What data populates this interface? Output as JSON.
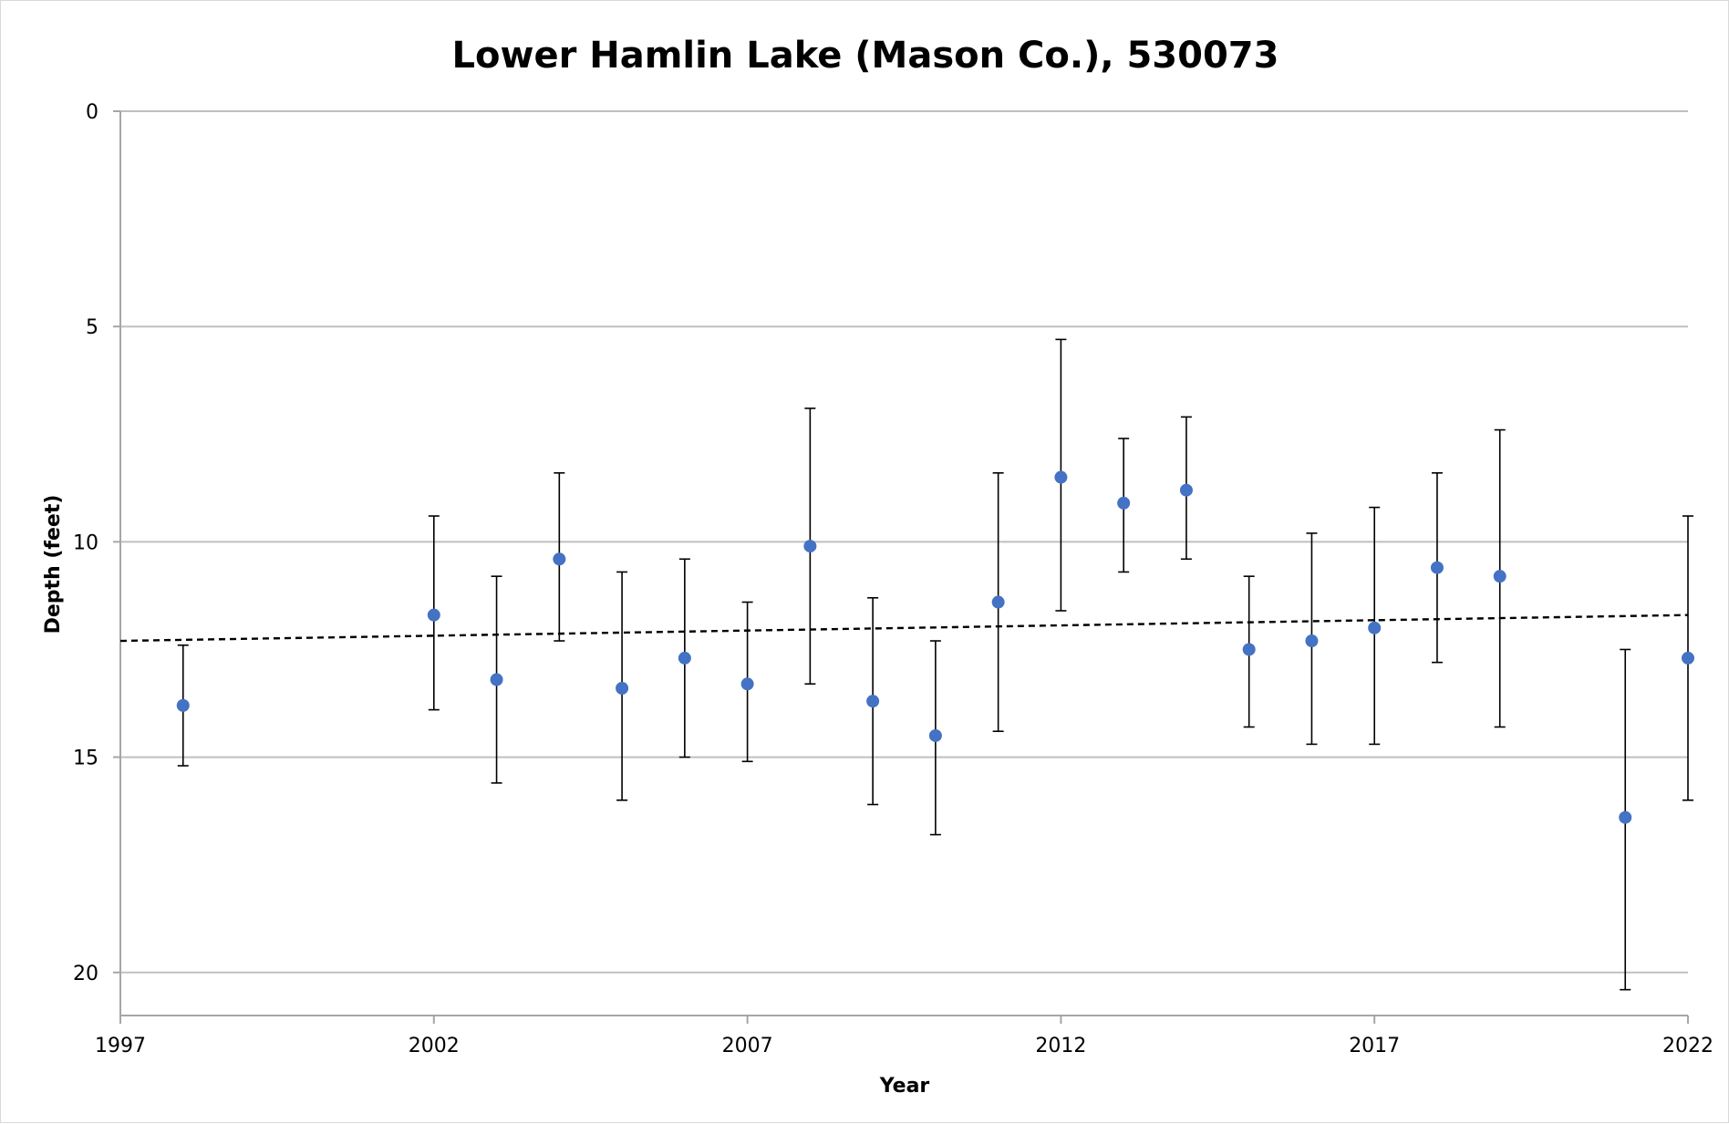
{
  "chart_data": {
    "type": "scatter",
    "title": "Lower Hamlin Lake (Mason Co.), 530073",
    "xlabel": "Year",
    "ylabel": "Depth (feet)",
    "xlim": [
      1997,
      2022
    ],
    "ylim": [
      0,
      21
    ],
    "y_inverted": true,
    "x_ticks": [
      "1997",
      "2002",
      "2007",
      "2012",
      "2017",
      "2022"
    ],
    "y_ticks": [
      "0",
      "5",
      "10",
      "15",
      "20"
    ],
    "grid": "horizontal",
    "legend": "none",
    "marker_color": "#4472c4",
    "points": [
      {
        "x": 1998,
        "y": 13.8,
        "low": 12.4,
        "high": 15.2
      },
      {
        "x": 2002,
        "y": 11.7,
        "low": 9.4,
        "high": 13.9
      },
      {
        "x": 2003,
        "y": 13.2,
        "low": 10.8,
        "high": 15.6
      },
      {
        "x": 2004,
        "y": 10.4,
        "low": 8.4,
        "high": 12.3
      },
      {
        "x": 2005,
        "y": 13.4,
        "low": 10.7,
        "high": 16.0
      },
      {
        "x": 2006,
        "y": 12.7,
        "low": 10.4,
        "high": 15.0
      },
      {
        "x": 2007,
        "y": 13.3,
        "low": 11.4,
        "high": 15.1
      },
      {
        "x": 2008,
        "y": 10.1,
        "low": 6.9,
        "high": 13.3
      },
      {
        "x": 2009,
        "y": 13.7,
        "low": 11.3,
        "high": 16.1
      },
      {
        "x": 2010,
        "y": 14.5,
        "low": 12.3,
        "high": 16.8
      },
      {
        "x": 2011,
        "y": 11.4,
        "low": 8.4,
        "high": 14.4
      },
      {
        "x": 2012,
        "y": 8.5,
        "low": 5.3,
        "high": 11.6
      },
      {
        "x": 2013,
        "y": 9.1,
        "low": 7.6,
        "high": 10.7
      },
      {
        "x": 2014,
        "y": 8.8,
        "low": 7.1,
        "high": 10.4
      },
      {
        "x": 2015,
        "y": 12.5,
        "low": 10.8,
        "high": 14.3
      },
      {
        "x": 2016,
        "y": 12.3,
        "low": 9.8,
        "high": 14.7
      },
      {
        "x": 2017,
        "y": 12.0,
        "low": 9.2,
        "high": 14.7
      },
      {
        "x": 2018,
        "y": 10.6,
        "low": 8.4,
        "high": 12.8
      },
      {
        "x": 2019,
        "y": 10.8,
        "low": 7.4,
        "high": 14.3
      },
      {
        "x": 2021,
        "y": 16.4,
        "low": 12.5,
        "high": 20.4
      },
      {
        "x": 2022,
        "y": 12.7,
        "low": 9.4,
        "high": 16.0
      }
    ],
    "trendline": {
      "style": "dashed",
      "x": [
        1997,
        2022
      ],
      "y": [
        12.3,
        11.7
      ]
    }
  }
}
